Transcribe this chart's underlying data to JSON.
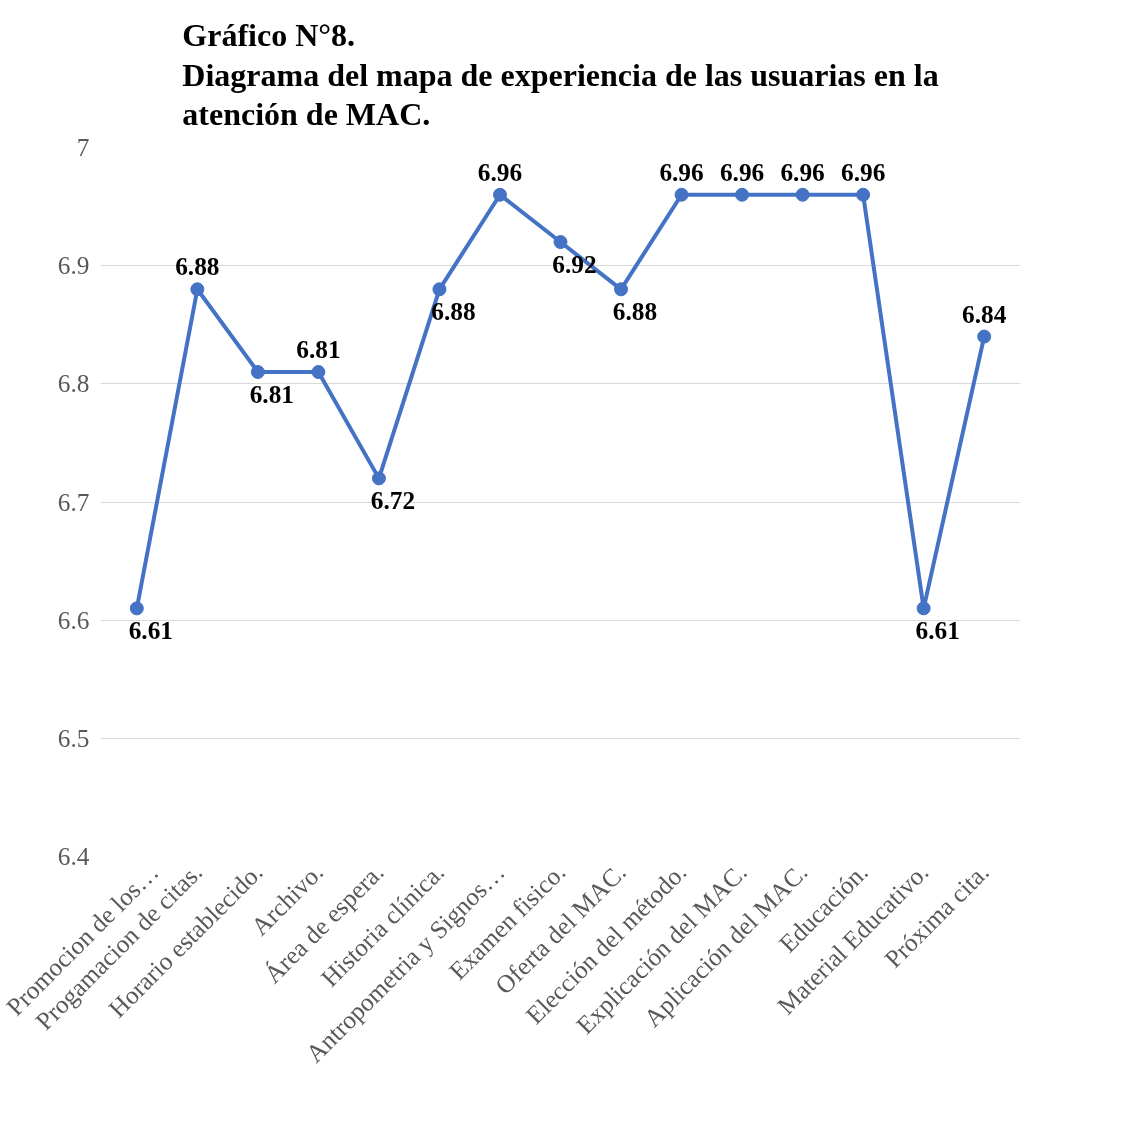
{
  "chart_data": {
    "type": "line",
    "title": "Gráfico N°8.\nDiagrama del mapa de experiencia de las usuarias en la\natención de MAC.",
    "categories": [
      "Promocion de los…",
      "Progamacion de citas.",
      "Horario establecido.",
      "Archivo.",
      "Área de espera.",
      "Historia clínica.",
      "Antropometria y Signos…",
      "Examen fisico.",
      "Oferta del MAC.",
      "Elección del método.",
      "Explicación del MAC.",
      "Aplicación del MAC.",
      "Educación.",
      "Material Educativo.",
      "Próxima cita."
    ],
    "values": [
      6.61,
      6.88,
      6.81,
      6.81,
      6.72,
      6.88,
      6.96,
      6.92,
      6.88,
      6.96,
      6.96,
      6.96,
      6.96,
      6.61,
      6.84
    ],
    "color": "#4472c4",
    "ylim": [
      6.4,
      7
    ],
    "yticks": [
      6.4,
      6.5,
      6.6,
      6.7,
      6.8,
      6.9,
      7
    ],
    "grid": "y",
    "marker": "circle",
    "line_style": "solid",
    "data_labels": true
  }
}
